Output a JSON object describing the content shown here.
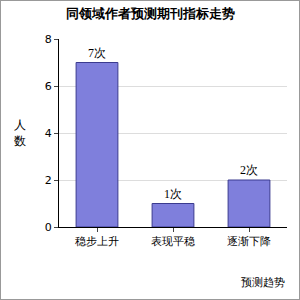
{
  "chart_data": {
    "type": "bar",
    "title": "同领域作者预测期刊指标走势",
    "x_label": "预测趋势",
    "y_label": "人数",
    "categories": [
      "稳步上升",
      "表现平稳",
      "逐渐下降"
    ],
    "values": [
      7,
      1,
      2
    ],
    "value_labels": [
      "7次",
      "1次",
      "2次"
    ],
    "data_labels": true,
    "color": "#7f7fdc",
    "ylim": [
      0,
      8
    ],
    "yticks": [
      0,
      2,
      4,
      6,
      8
    ],
    "grid": true
  }
}
